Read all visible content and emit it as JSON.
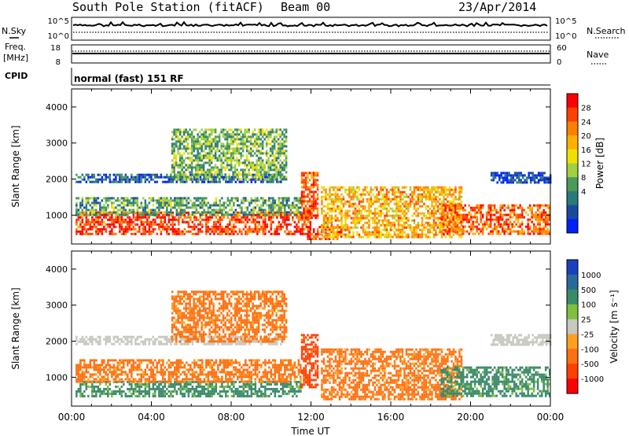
{
  "header": {
    "station": "South Pole Station (fitACF)",
    "beam": "Beam 00",
    "date": "23/Apr/2014"
  },
  "top_panels": {
    "nsky_label": "N.Sky",
    "nsky_ticks": [
      "10^5",
      "10^0"
    ],
    "nsearch_label": "N.Search",
    "nsearch_ticks": [
      "10^5",
      "10^0"
    ],
    "freq_label": "Freq.",
    "freq_unit": "[MHz]",
    "freq_ticks": [
      "18",
      "8"
    ],
    "nave_label": "Nave",
    "nave_ticks": [
      "60",
      "0"
    ],
    "cpid_label": "CPID",
    "cpid_text": "normal (fast) 151 RF"
  },
  "chart_data": [
    {
      "type": "heatmap",
      "panel": "power",
      "xlabel": "",
      "ylabel": "Slant Range [km]",
      "x_range": [
        "00:00",
        "24:00"
      ],
      "ylim": [
        200,
        4500
      ],
      "y_ticks": [
        1000,
        2000,
        3000,
        4000
      ],
      "x_ticks": [
        "00:00",
        "04:00",
        "08:00",
        "12:00",
        "16:00",
        "20:00",
        "00:00"
      ],
      "colorbar": {
        "label": "Power [dB]",
        "ticks": [
          28,
          24,
          20,
          16,
          12,
          8,
          4
        ],
        "colors": [
          "#ff0000",
          "#ff4000",
          "#ff8000",
          "#ffb000",
          "#f0e000",
          "#a0d040",
          "#4a9a5a",
          "#2a7a7a",
          "#1a4aa0",
          "#0020ff"
        ]
      },
      "regions": [
        {
          "t0": 0.2,
          "t1": 12.0,
          "r0": 500,
          "r1": 1100,
          "level": 26
        },
        {
          "t0": 0.2,
          "t1": 11.5,
          "r0": 1000,
          "r1": 1500,
          "level": 12
        },
        {
          "t0": 0.2,
          "t1": 10.5,
          "r0": 1950,
          "r1": 2150,
          "level": 7
        },
        {
          "t0": 5.0,
          "t1": 10.8,
          "r0": 2000,
          "r1": 3400,
          "level": 13
        },
        {
          "t0": 11.8,
          "t1": 13.5,
          "r0": 350,
          "r1": 700,
          "level": 26
        },
        {
          "t0": 11.5,
          "t1": 12.3,
          "r0": 900,
          "r1": 2200,
          "level": 24
        },
        {
          "t0": 12.5,
          "t1": 19.5,
          "r0": 400,
          "r1": 1800,
          "level": 20
        },
        {
          "t0": 18.5,
          "t1": 24.0,
          "r0": 500,
          "r1": 1300,
          "level": 24
        },
        {
          "t0": 21.0,
          "t1": 24.0,
          "r0": 1900,
          "r1": 2200,
          "level": 6
        }
      ]
    },
    {
      "type": "heatmap",
      "panel": "velocity",
      "xlabel": "Time UT",
      "ylabel": "Slant Range [km]",
      "x_range": [
        "00:00",
        "24:00"
      ],
      "ylim": [
        200,
        4500
      ],
      "y_ticks": [
        1000,
        2000,
        3000,
        4000
      ],
      "x_ticks": [
        "00:00",
        "04:00",
        "08:00",
        "12:00",
        "16:00",
        "20:00",
        "00:00"
      ],
      "colorbar": {
        "label": "Velocity [m s⁻¹]",
        "ticks": [
          1000,
          500,
          100,
          25,
          -25,
          -100,
          -500,
          -1000
        ],
        "colors": [
          "#1a40c0",
          "#2a6a9a",
          "#3a8a6a",
          "#80c040",
          "#c8c8c0",
          "#ffa020",
          "#ff7010",
          "#ff4000",
          "#ff0000"
        ]
      },
      "regions": [
        {
          "t0": 0.2,
          "t1": 11.5,
          "r0": 500,
          "r1": 900,
          "level": 100
        },
        {
          "t0": 0.2,
          "t1": 11.5,
          "r0": 900,
          "r1": 1500,
          "level": -100
        },
        {
          "t0": 0.2,
          "t1": 10.5,
          "r0": 1950,
          "r1": 2150,
          "level": 0
        },
        {
          "t0": 5.0,
          "t1": 10.8,
          "r0": 2000,
          "r1": 3400,
          "level": -100
        },
        {
          "t0": 11.5,
          "t1": 12.3,
          "r0": 700,
          "r1": 2200,
          "level": -500
        },
        {
          "t0": 12.5,
          "t1": 19.5,
          "r0": 400,
          "r1": 1800,
          "level": -100
        },
        {
          "t0": 18.5,
          "t1": 24.0,
          "r0": 500,
          "r1": 1300,
          "level": 100
        },
        {
          "t0": 21.0,
          "t1": 24.0,
          "r0": 1900,
          "r1": 2200,
          "level": 0
        }
      ]
    }
  ]
}
